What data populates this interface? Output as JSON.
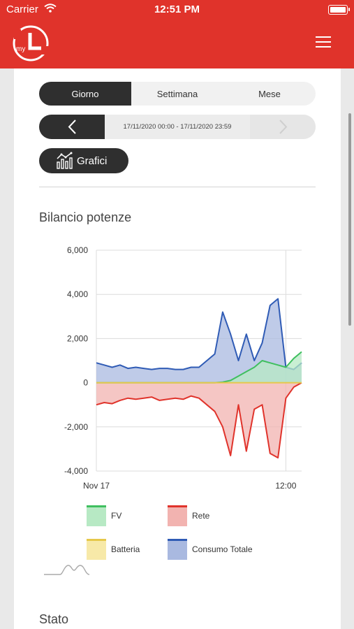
{
  "status_bar": {
    "carrier": "Carrier",
    "time": "12:51 PM"
  },
  "header": {
    "logo_text": "my",
    "logo_icon": "myL-logo",
    "menu_icon": "hamburger-menu-icon",
    "background": "#e0332b"
  },
  "period_tabs": {
    "selected": "Giorno",
    "items": [
      {
        "label": "Giorno"
      },
      {
        "label": "Settimana"
      },
      {
        "label": "Mese"
      }
    ]
  },
  "date_nav": {
    "range": "17/11/2020 00:00 - 17/11/2020 23:59",
    "prev_icon": "chevron-left-icon",
    "next_icon": "chevron-right-icon"
  },
  "charts_button": {
    "label": "Grafici",
    "icon": "bar-chart-icon"
  },
  "sections": {
    "power_balance_title": "Bilancio potenze",
    "status_title": "Stato"
  },
  "chart_data": {
    "type": "area",
    "title": "",
    "xlabel": "",
    "ylabel": "",
    "x_tick_labels": [
      "Nov 17",
      "12:00"
    ],
    "y_ticks": [
      6000,
      4000,
      2000,
      0,
      -2000,
      -4000
    ],
    "y_tick_labels": [
      "6,000",
      "4,000",
      "2,000",
      "0",
      "-2,000",
      "-4,000"
    ],
    "ylim": [
      -4000,
      6000
    ],
    "x_hours": [
      0,
      0.5,
      1,
      1.5,
      2,
      2.5,
      3,
      3.5,
      4,
      4.5,
      5,
      5.5,
      6,
      6.5,
      7,
      7.5,
      8,
      8.5,
      9,
      9.5,
      10,
      10.5,
      11,
      11.5,
      12,
      12.5,
      13
    ],
    "grid": true,
    "legend_position": "bottom",
    "series": [
      {
        "name": "FV",
        "color": "#3fbf5f",
        "fill": "#b7e9c4",
        "values": [
          0,
          0,
          0,
          0,
          0,
          0,
          0,
          0,
          0,
          0,
          0,
          0,
          0,
          0,
          0,
          0,
          30,
          100,
          300,
          500,
          700,
          1000,
          900,
          800,
          700,
          1100,
          1400
        ]
      },
      {
        "name": "Rete",
        "color": "#e0332b",
        "fill": "#f2b3b0",
        "values": [
          -1000,
          -900,
          -950,
          -800,
          -700,
          -750,
          -700,
          -650,
          -800,
          -750,
          -700,
          -750,
          -600,
          -700,
          -1000,
          -1300,
          -2000,
          -3300,
          -1000,
          -3100,
          -1200,
          -1000,
          -3200,
          -3400,
          -700,
          -200,
          0
        ]
      },
      {
        "name": "Batteria",
        "color": "#e6c84a",
        "fill": "#f7e9a8",
        "values": [
          0,
          0,
          0,
          0,
          0,
          0,
          0,
          0,
          0,
          0,
          0,
          0,
          0,
          0,
          0,
          0,
          0,
          0,
          0,
          0,
          0,
          0,
          0,
          0,
          0,
          0,
          0
        ]
      },
      {
        "name": "Consumo Totale",
        "color": "#2f5bb5",
        "fill": "#a9b9e0",
        "values": [
          900,
          800,
          700,
          800,
          650,
          700,
          650,
          600,
          650,
          650,
          600,
          600,
          700,
          700,
          1000,
          1300,
          3200,
          2200,
          1000,
          2200,
          1000,
          1800,
          3500,
          3800,
          700,
          600,
          900
        ]
      }
    ]
  }
}
